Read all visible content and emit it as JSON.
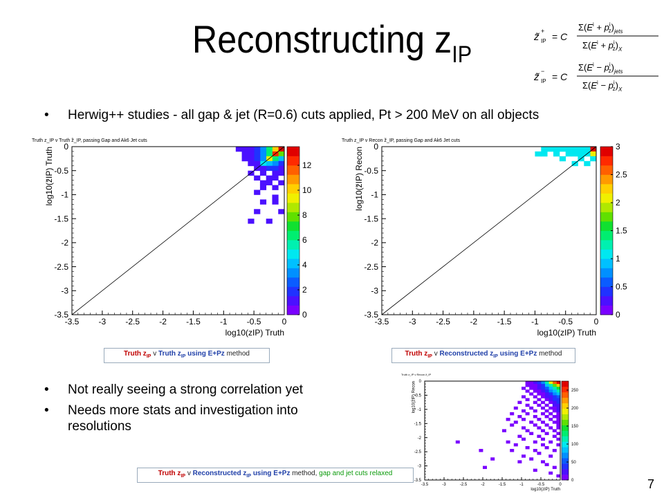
{
  "title": {
    "main": "Reconstructing z",
    "sub": "IP"
  },
  "formula": {
    "line1": {
      "lhs": "z̃+IP = C",
      "num": "Σ(Eⁱ + pᵢz)jets",
      "den": "Σ(Eⁱ + pᵢz)X"
    },
    "line2": {
      "lhs": "z̃−IP = C",
      "num": "Σ(Eⁱ − pᵢz)jets",
      "den": "Σ(Eⁱ − pᵢz)X"
    }
  },
  "bullets": {
    "b1": "Herwig++ studies - all gap & jet (R=0.6) cuts applied, Pt > 200 MeV on all objects",
    "b2": "Not really seeing a strong correlation yet",
    "b3": "Needs more stats and investigation into",
    "b3b": "resolutions"
  },
  "captions": {
    "c1": {
      "a": "Truth z",
      "sub": "IP",
      "b": " v ",
      "c": "Truth z",
      "csub": "IP",
      "d": " using E+Pz",
      "e": " method"
    },
    "c2": {
      "a": "Truth z",
      "sub": "IP",
      "b": " v ",
      "c": "Reconstructed z",
      "csub": "IP",
      "d": " using E+Pz",
      "e": " method"
    },
    "c3": {
      "a": "Truth z",
      "sub": "IP",
      "b": " v ",
      "c": "Reconstructed z",
      "csub": "IP",
      "d": " using E+Pz",
      "e": " method, ",
      "f": "gap and jet cuts relaxed"
    }
  },
  "page_number": "7",
  "colors": {
    "frame": "#000000",
    "caption_red": "#c00000",
    "caption_blue": "#1f3fa8",
    "caption_green": "#0a9a0a"
  },
  "chart_data": [
    {
      "type": "heatmap",
      "title": "Truth z_IP v Truth z̃_IP, passing Gap and Ak6 Jet cuts",
      "xlabel": "log10(zIP) Truth",
      "ylabel": "log10(z̃IP) Truth",
      "xlim": [
        -3.5,
        0
      ],
      "ylim": [
        -3.5,
        0
      ],
      "xticks": [
        "-3.5",
        "-3",
        "-2.5",
        "-2",
        "-1.5",
        "-1",
        "-0.5",
        "0"
      ],
      "yticks": [
        "-3.5",
        "-3",
        "-2.5",
        "-2",
        "-1.5",
        "-1",
        "-0.5",
        "0"
      ],
      "zlim": [
        0,
        13.5
      ],
      "zticks": [
        "0",
        "2",
        "4",
        "6",
        "8",
        "10",
        "12"
      ],
      "diagonal": true,
      "bin_width": 0.1,
      "cells": [
        [
          -0.05,
          -0.05,
          13
        ],
        [
          -0.15,
          -0.05,
          10
        ],
        [
          -0.25,
          -0.05,
          6
        ],
        [
          -0.35,
          -0.05,
          3
        ],
        [
          -0.45,
          -0.05,
          2
        ],
        [
          -0.55,
          -0.05,
          1
        ],
        [
          -0.65,
          -0.05,
          1
        ],
        [
          -0.75,
          -0.05,
          1
        ],
        [
          -0.05,
          -0.15,
          8
        ],
        [
          -0.15,
          -0.15,
          12
        ],
        [
          -0.25,
          -0.15,
          6
        ],
        [
          -0.35,
          -0.15,
          3
        ],
        [
          -0.45,
          -0.15,
          2
        ],
        [
          -0.55,
          -0.15,
          1
        ],
        [
          -0.65,
          -0.15,
          1
        ],
        [
          -0.05,
          -0.25,
          4
        ],
        [
          -0.15,
          -0.25,
          6
        ],
        [
          -0.25,
          -0.25,
          9
        ],
        [
          -0.35,
          -0.25,
          3
        ],
        [
          -0.45,
          -0.25,
          2
        ],
        [
          -0.55,
          -0.25,
          1
        ],
        [
          -0.65,
          -0.25,
          1
        ],
        [
          -0.05,
          -0.35,
          2
        ],
        [
          -0.15,
          -0.35,
          3
        ],
        [
          -0.25,
          -0.35,
          4
        ],
        [
          -0.35,
          -0.35,
          5
        ],
        [
          -0.45,
          -0.35,
          1
        ],
        [
          -0.55,
          -0.35,
          1
        ],
        [
          -0.05,
          -0.45,
          1
        ],
        [
          -0.15,
          -0.45,
          2
        ],
        [
          -0.25,
          -0.45,
          2
        ],
        [
          -0.35,
          -0.45,
          1
        ],
        [
          -0.45,
          -0.45,
          1
        ],
        [
          -0.05,
          -0.55,
          1
        ],
        [
          -0.15,
          -0.55,
          1
        ],
        [
          -0.35,
          -0.55,
          1
        ],
        [
          -0.55,
          -0.55,
          1
        ],
        [
          -0.15,
          -0.65,
          1
        ],
        [
          -0.25,
          -0.65,
          1
        ],
        [
          -0.45,
          -0.65,
          1
        ],
        [
          -0.05,
          -0.75,
          1
        ],
        [
          -0.25,
          -0.75,
          1
        ],
        [
          -0.35,
          -0.75,
          1
        ],
        [
          -0.15,
          -0.85,
          1
        ],
        [
          -0.35,
          -0.85,
          1
        ],
        [
          -0.45,
          -0.95,
          1
        ],
        [
          -0.15,
          -1.05,
          1
        ],
        [
          -0.35,
          -1.15,
          1
        ],
        [
          -0.15,
          -1.15,
          1
        ],
        [
          -0.45,
          -1.35,
          1
        ],
        [
          -0.05,
          -1.35,
          1
        ],
        [
          -0.55,
          -1.55,
          1
        ],
        [
          -0.25,
          -1.55,
          1
        ]
      ]
    },
    {
      "type": "heatmap",
      "title": "Truth z_IP v Recon z̃_IP, passing Gap and Ak6 Jet cuts",
      "xlabel": "log10(zIP) Truth",
      "ylabel": "log10(z̃IP) Recon",
      "xlim": [
        -3.5,
        0
      ],
      "ylim": [
        -3.5,
        0
      ],
      "xticks": [
        "-3.5",
        "-3",
        "-2.5",
        "-2",
        "-1.5",
        "-1",
        "-0.5",
        "0"
      ],
      "yticks": [
        "-3.5",
        "-3",
        "-2.5",
        "-2",
        "-1.5",
        "-1",
        "-0.5",
        "0"
      ],
      "zlim": [
        0,
        3
      ],
      "zticks": [
        "0",
        "0.5",
        "1",
        "1.5",
        "2",
        "2.5",
        "3"
      ],
      "diagonal": true,
      "bin_width": 0.1,
      "cells": [
        [
          -0.05,
          -0.05,
          3
        ],
        [
          -0.15,
          -0.05,
          1
        ],
        [
          -0.25,
          -0.05,
          1
        ],
        [
          -0.35,
          -0.05,
          1
        ],
        [
          -0.45,
          -0.05,
          1
        ],
        [
          -0.55,
          -0.05,
          1
        ],
        [
          -0.65,
          -0.05,
          1
        ],
        [
          -0.75,
          -0.05,
          1
        ],
        [
          -0.85,
          -0.05,
          1
        ],
        [
          -0.05,
          -0.15,
          2
        ],
        [
          -0.15,
          -0.15,
          1
        ],
        [
          -0.25,
          -0.15,
          1
        ],
        [
          -0.35,
          -0.15,
          1
        ],
        [
          -0.45,
          -0.15,
          1
        ],
        [
          -0.65,
          -0.15,
          1
        ],
        [
          -0.85,
          -0.15,
          1
        ],
        [
          -0.95,
          -0.15,
          1
        ],
        [
          -0.05,
          -0.25,
          1
        ],
        [
          -0.25,
          -0.25,
          1
        ],
        [
          -0.55,
          -0.25,
          1
        ],
        [
          -0.35,
          -0.35,
          1
        ],
        [
          -0.15,
          -0.35,
          1
        ]
      ]
    },
    {
      "type": "heatmap",
      "title": "Truth z_IP v Recon z̃_IP",
      "xlabel": "log10(zIP) Truth",
      "ylabel": "log10(z̃IP) Recon",
      "xlim": [
        -3.5,
        0
      ],
      "ylim": [
        -3.5,
        0
      ],
      "xticks": [
        "-3.5",
        "-3",
        "-2.5",
        "-2",
        "-1.5",
        "-1",
        "-0.5",
        "0"
      ],
      "yticks": [
        "-3.5",
        "-3",
        "-2.5",
        "-2",
        "-1.5",
        "-1",
        "-0.5",
        "0"
      ],
      "zlim": [
        0,
        275
      ],
      "zticks": [
        "0",
        "50",
        "100",
        "150",
        "200",
        "250"
      ],
      "diagonal": false,
      "bin_width": 0.1,
      "cells": [
        [
          -0.05,
          -0.05,
          270
        ],
        [
          -0.15,
          -0.05,
          240
        ],
        [
          -0.25,
          -0.05,
          190
        ],
        [
          -0.35,
          -0.05,
          120
        ],
        [
          -0.45,
          -0.05,
          70
        ],
        [
          -0.55,
          -0.05,
          40
        ],
        [
          -0.65,
          -0.05,
          20
        ],
        [
          -0.75,
          -0.05,
          10
        ],
        [
          -0.85,
          -0.05,
          5
        ],
        [
          -0.05,
          -0.15,
          200
        ],
        [
          -0.15,
          -0.15,
          160
        ],
        [
          -0.25,
          -0.15,
          110
        ],
        [
          -0.35,
          -0.15,
          80
        ],
        [
          -0.45,
          -0.15,
          45
        ],
        [
          -0.55,
          -0.15,
          25
        ],
        [
          -0.65,
          -0.15,
          12
        ],
        [
          -0.75,
          -0.15,
          6
        ],
        [
          -0.85,
          -0.15,
          3
        ],
        [
          -0.05,
          -0.25,
          150
        ],
        [
          -0.15,
          -0.25,
          120
        ],
        [
          -0.25,
          -0.25,
          90
        ],
        [
          -0.35,
          -0.25,
          60
        ],
        [
          -0.45,
          -0.25,
          35
        ],
        [
          -0.55,
          -0.25,
          18
        ],
        [
          -0.65,
          -0.25,
          9
        ],
        [
          -0.75,
          -0.25,
          4
        ],
        [
          -0.95,
          -0.25,
          2
        ],
        [
          -0.05,
          -0.35,
          110
        ],
        [
          -0.15,
          -0.35,
          90
        ],
        [
          -0.25,
          -0.35,
          65
        ],
        [
          -0.35,
          -0.35,
          40
        ],
        [
          -0.45,
          -0.35,
          22
        ],
        [
          -0.55,
          -0.35,
          12
        ],
        [
          -0.65,
          -0.35,
          6
        ],
        [
          -0.85,
          -0.35,
          3
        ],
        [
          -0.05,
          -0.45,
          80
        ],
        [
          -0.15,
          -0.45,
          65
        ],
        [
          -0.25,
          -0.45,
          45
        ],
        [
          -0.35,
          -0.45,
          28
        ],
        [
          -0.45,
          -0.45,
          15
        ],
        [
          -0.55,
          -0.45,
          8
        ],
        [
          -0.75,
          -0.45,
          4
        ],
        [
          -0.05,
          -0.55,
          60
        ],
        [
          -0.15,
          -0.55,
          45
        ],
        [
          -0.25,
          -0.55,
          30
        ],
        [
          -0.35,
          -0.55,
          18
        ],
        [
          -0.45,
          -0.55,
          10
        ],
        [
          -0.65,
          -0.55,
          5
        ],
        [
          -0.95,
          -0.55,
          2
        ],
        [
          -0.05,
          -0.65,
          45
        ],
        [
          -0.15,
          -0.65,
          32
        ],
        [
          -0.25,
          -0.65,
          20
        ],
        [
          -0.35,
          -0.65,
          12
        ],
        [
          -0.55,
          -0.65,
          6
        ],
        [
          -0.85,
          -0.65,
          3
        ],
        [
          -0.05,
          -0.75,
          35
        ],
        [
          -0.15,
          -0.75,
          22
        ],
        [
          -0.25,
          -0.75,
          14
        ],
        [
          -0.45,
          -0.75,
          8
        ],
        [
          -0.65,
          -0.75,
          4
        ],
        [
          -1.05,
          -0.75,
          2
        ],
        [
          -0.05,
          -0.85,
          28
        ],
        [
          -0.15,
          -0.85,
          16
        ],
        [
          -0.35,
          -0.85,
          9
        ],
        [
          -0.55,
          -0.85,
          5
        ],
        [
          -0.85,
          -0.85,
          3
        ],
        [
          -0.05,
          -0.95,
          22
        ],
        [
          -0.15,
          -0.95,
          12
        ],
        [
          -0.25,
          -0.95,
          8
        ],
        [
          -0.45,
          -0.95,
          5
        ],
        [
          -0.75,
          -0.95,
          3
        ],
        [
          -1.15,
          -0.95,
          2
        ],
        [
          -0.05,
          -1.05,
          18
        ],
        [
          -0.15,
          -1.05,
          10
        ],
        [
          -0.35,
          -1.05,
          6
        ],
        [
          -0.65,
          -1.05,
          3
        ],
        [
          -0.95,
          -1.05,
          2
        ],
        [
          -0.05,
          -1.15,
          14
        ],
        [
          -0.25,
          -1.15,
          7
        ],
        [
          -0.45,
          -1.15,
          4
        ],
        [
          -0.85,
          -1.15,
          2
        ],
        [
          -1.25,
          -1.15,
          2
        ],
        [
          -0.05,
          -1.25,
          11
        ],
        [
          -0.15,
          -1.25,
          6
        ],
        [
          -0.35,
          -1.25,
          4
        ],
        [
          -0.65,
          -1.25,
          3
        ],
        [
          -1.05,
          -1.25,
          2
        ],
        [
          -0.05,
          -1.35,
          9
        ],
        [
          -0.25,
          -1.35,
          5
        ],
        [
          -0.55,
          -1.35,
          3
        ],
        [
          -0.95,
          -1.35,
          2
        ],
        [
          -1.35,
          -1.35,
          2
        ],
        [
          -0.05,
          -1.45,
          7
        ],
        [
          -0.15,
          -1.45,
          5
        ],
        [
          -0.45,
          -1.45,
          3
        ],
        [
          -0.75,
          -1.45,
          2
        ],
        [
          -1.15,
          -1.45,
          2
        ],
        [
          -0.05,
          -1.55,
          6
        ],
        [
          -0.35,
          -1.55,
          4
        ],
        [
          -0.65,
          -1.55,
          3
        ],
        [
          -1.25,
          -1.55,
          2
        ],
        [
          -0.05,
          -1.65,
          5
        ],
        [
          -0.25,
          -1.65,
          3
        ],
        [
          -0.55,
          -1.65,
          2
        ],
        [
          -0.95,
          -1.65,
          2
        ],
        [
          -0.15,
          -1.75,
          4
        ],
        [
          -0.45,
          -1.75,
          3
        ],
        [
          -0.85,
          -1.75,
          2
        ],
        [
          -1.45,
          -1.75,
          2
        ],
        [
          -0.05,
          -1.85,
          4
        ],
        [
          -0.35,
          -1.85,
          2
        ],
        [
          -0.75,
          -1.85,
          2
        ],
        [
          -0.15,
          -1.95,
          3
        ],
        [
          -0.55,
          -1.95,
          2
        ],
        [
          -1.05,
          -1.95,
          2
        ],
        [
          -0.05,
          -2.05,
          3
        ],
        [
          -0.45,
          -2.05,
          2
        ],
        [
          -0.95,
          -2.05,
          2
        ],
        [
          -0.25,
          -2.15,
          2
        ],
        [
          -0.65,
          -2.15,
          2
        ],
        [
          -1.35,
          -2.15,
          2
        ],
        [
          -0.05,
          -2.25,
          2
        ],
        [
          -0.45,
          -2.25,
          2
        ],
        [
          -1.15,
          -2.25,
          2
        ],
        [
          -0.35,
          -2.35,
          2
        ],
        [
          -0.85,
          -2.35,
          2
        ],
        [
          -0.15,
          -2.45,
          2
        ],
        [
          -0.65,
          -2.45,
          2
        ],
        [
          -1.25,
          -2.45,
          2
        ],
        [
          -0.55,
          -2.55,
          2
        ],
        [
          -0.25,
          -2.65,
          2
        ],
        [
          -0.95,
          -2.65,
          2
        ],
        [
          -0.75,
          -2.75,
          2
        ],
        [
          -0.45,
          -2.85,
          2
        ],
        [
          -1.05,
          -2.85,
          2
        ],
        [
          -0.35,
          -2.95,
          2
        ],
        [
          -0.15,
          -3.05,
          2
        ],
        [
          -0.65,
          -3.15,
          2
        ],
        [
          -0.25,
          -3.25,
          2
        ],
        [
          -0.05,
          -3.35,
          2
        ],
        [
          -2.65,
          -2.15,
          2
        ],
        [
          -2.05,
          -2.45,
          2
        ],
        [
          -1.75,
          -2.75,
          2
        ],
        [
          -1.95,
          -3.05,
          2
        ]
      ]
    }
  ]
}
